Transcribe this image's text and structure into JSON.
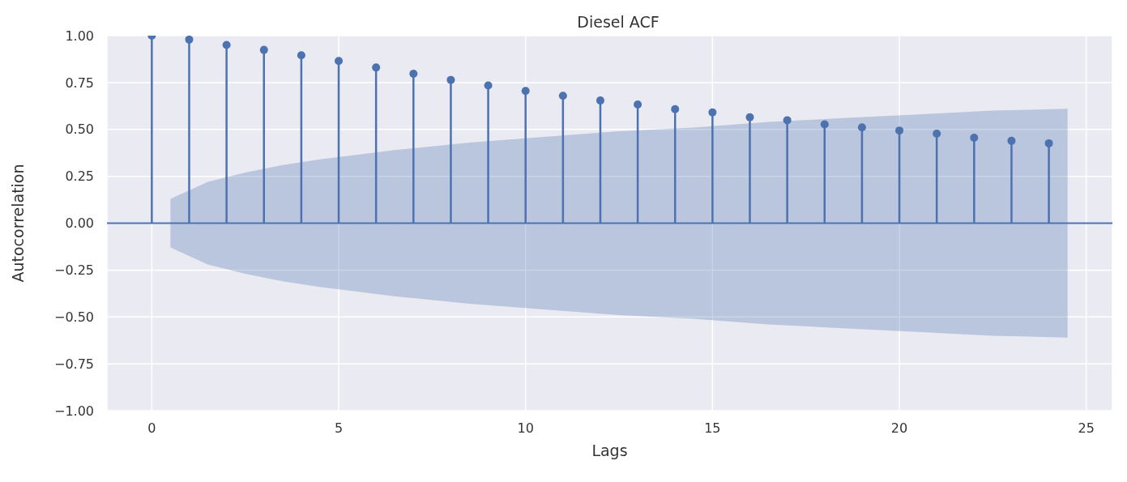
{
  "chart_data": {
    "type": "lollipop",
    "title": "Diesel ACF",
    "xlabel": "Lags",
    "ylabel": "Autocorrelation",
    "xlim": [
      -1.2,
      25.7
    ],
    "xticks": [
      0,
      5,
      10,
      15,
      20,
      25
    ],
    "ylim": [
      -1,
      1
    ],
    "yticks": [
      {
        "value": -1,
        "label": "−1.00"
      },
      {
        "value": -0.75,
        "label": "−0.75"
      },
      {
        "value": -0.5,
        "label": "−0.50"
      },
      {
        "value": -0.25,
        "label": "−0.25"
      },
      {
        "value": 0,
        "label": "0.00"
      },
      {
        "value": 0.25,
        "label": "0.25"
      },
      {
        "value": 0.5,
        "label": "0.50"
      },
      {
        "value": 0.75,
        "label": "0.75"
      },
      {
        "value": 1,
        "label": "1.00"
      }
    ],
    "grid": true,
    "marker": "circle",
    "series": [
      {
        "color": "#4c72b0",
        "x": [
          0,
          1,
          2,
          3,
          4,
          5,
          6,
          7,
          8,
          9,
          10,
          11,
          12,
          13,
          14,
          15,
          16,
          17,
          18,
          19,
          20,
          21,
          22,
          23,
          24
        ],
        "values": [
          1.0,
          0.979,
          0.95,
          0.924,
          0.895,
          0.865,
          0.83,
          0.797,
          0.764,
          0.734,
          0.705,
          0.679,
          0.654,
          0.633,
          0.608,
          0.591,
          0.565,
          0.549,
          0.527,
          0.511,
          0.494,
          0.477,
          0.456,
          0.439,
          0.426
        ]
      },
      {
        "type": "line",
        "marker": "none",
        "color": "#4c72b0",
        "x": [
          -1.2,
          0.5,
          1.5,
          2.5,
          3.5,
          4.5,
          6.5,
          8.5,
          10.5,
          12.5,
          14.5,
          16.5,
          18.5,
          20.5,
          22.5,
          24.5,
          25.7
        ],
        "values": [
          0,
          0,
          0,
          0,
          0,
          0,
          0,
          0,
          0,
          0,
          0,
          0,
          0,
          0,
          0,
          0,
          0
        ],
        "lower": [
          null,
          -0.13,
          -0.22,
          -0.27,
          -0.31,
          -0.34,
          -0.39,
          -0.43,
          -0.46,
          -0.49,
          -0.51,
          -0.54,
          -0.56,
          -0.58,
          -0.6,
          -0.61,
          null
        ],
        "upper": [
          null,
          0.13,
          0.22,
          0.27,
          0.31,
          0.34,
          0.39,
          0.43,
          0.46,
          0.49,
          0.51,
          0.54,
          0.56,
          0.58,
          0.6,
          0.61,
          null
        ]
      }
    ]
  }
}
